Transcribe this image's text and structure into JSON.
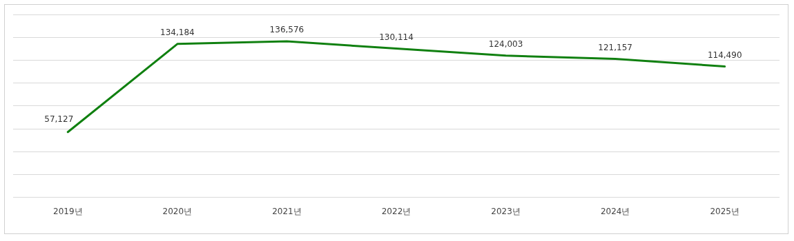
{
  "chart_data": {
    "type": "line",
    "categories": [
      "2019년",
      "2020년",
      "2021년",
      "2022년",
      "2023년",
      "2024년",
      "2025년"
    ],
    "series": [
      {
        "color": "#108010",
        "values": [
          57127,
          134184,
          136576,
          130114,
          124003,
          121157,
          114490
        ],
        "value_labels": [
          "57,127",
          "134,184",
          "136,576",
          "130,114",
          "124,003",
          "121,157",
          "114,490"
        ]
      }
    ],
    "grid": "y",
    "tick_labels": "x",
    "marker": "none",
    "line_style": "solid",
    "legend": false
  }
}
